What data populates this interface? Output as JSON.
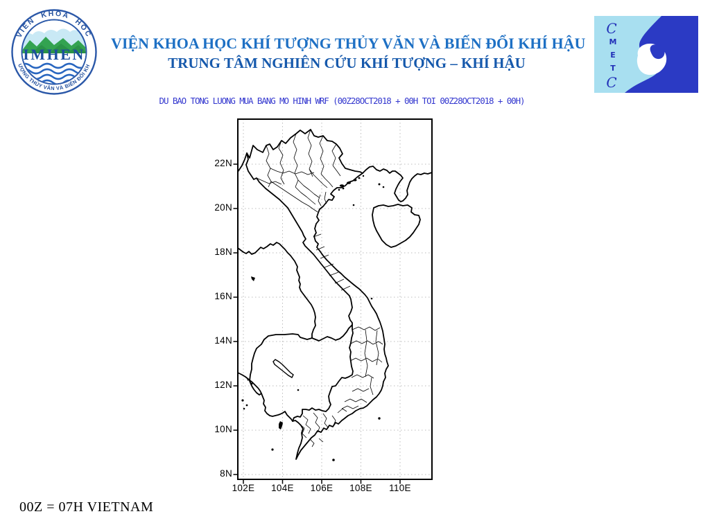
{
  "header": {
    "title_line1": "VIỆN KHOA HỌC KHÍ TƯỢNG THỦY VĂN VÀ BIẾN ĐỔI KHÍ HẬU",
    "title_line2": "TRUNG TÂM NGHIÊN CỨU KHÍ TƯỢNG – KHÍ HẬU"
  },
  "imhen_logo": {
    "arc_top": "VIEN KHOA HOC",
    "arc_bottom": "KHÍ TƯỢNG THỦY VĂN VÀ BIẾN ĐỔI KHÍ HẬU",
    "name": "IMHEN"
  },
  "metc_logo": {
    "letters": [
      "C",
      "M",
      "E",
      "T",
      "C"
    ]
  },
  "forecast": {
    "title": "DU BAO TONG LUONG MUA BANG MO HINH WRF (00Z28OCT2018 + 00H TOI 00Z28OCT2018 + 00H)"
  },
  "map": {
    "lat_labels": [
      "22N",
      "20N",
      "18N",
      "16N",
      "14N",
      "12N",
      "10N",
      "8N"
    ],
    "lon_labels": [
      "102E",
      "104E",
      "106E",
      "108E",
      "110E"
    ]
  },
  "footer": {
    "note": "00Z = 07H VIETNAM"
  },
  "colors": {
    "title_blue_light": "#1e70c4",
    "title_blue_dark": "#1659ac",
    "subtitle_blue": "#3438cf",
    "map_line_black": "#000000",
    "grid_gray": "#bbbbbb",
    "metc_light_blue": "#a8dff0",
    "metc_dark_blue": "#2b3ac4",
    "imhen_ring_blue": "#2b58a8",
    "imhen_green": "#33a351",
    "imhen_wave_blue": "#2866c0"
  }
}
